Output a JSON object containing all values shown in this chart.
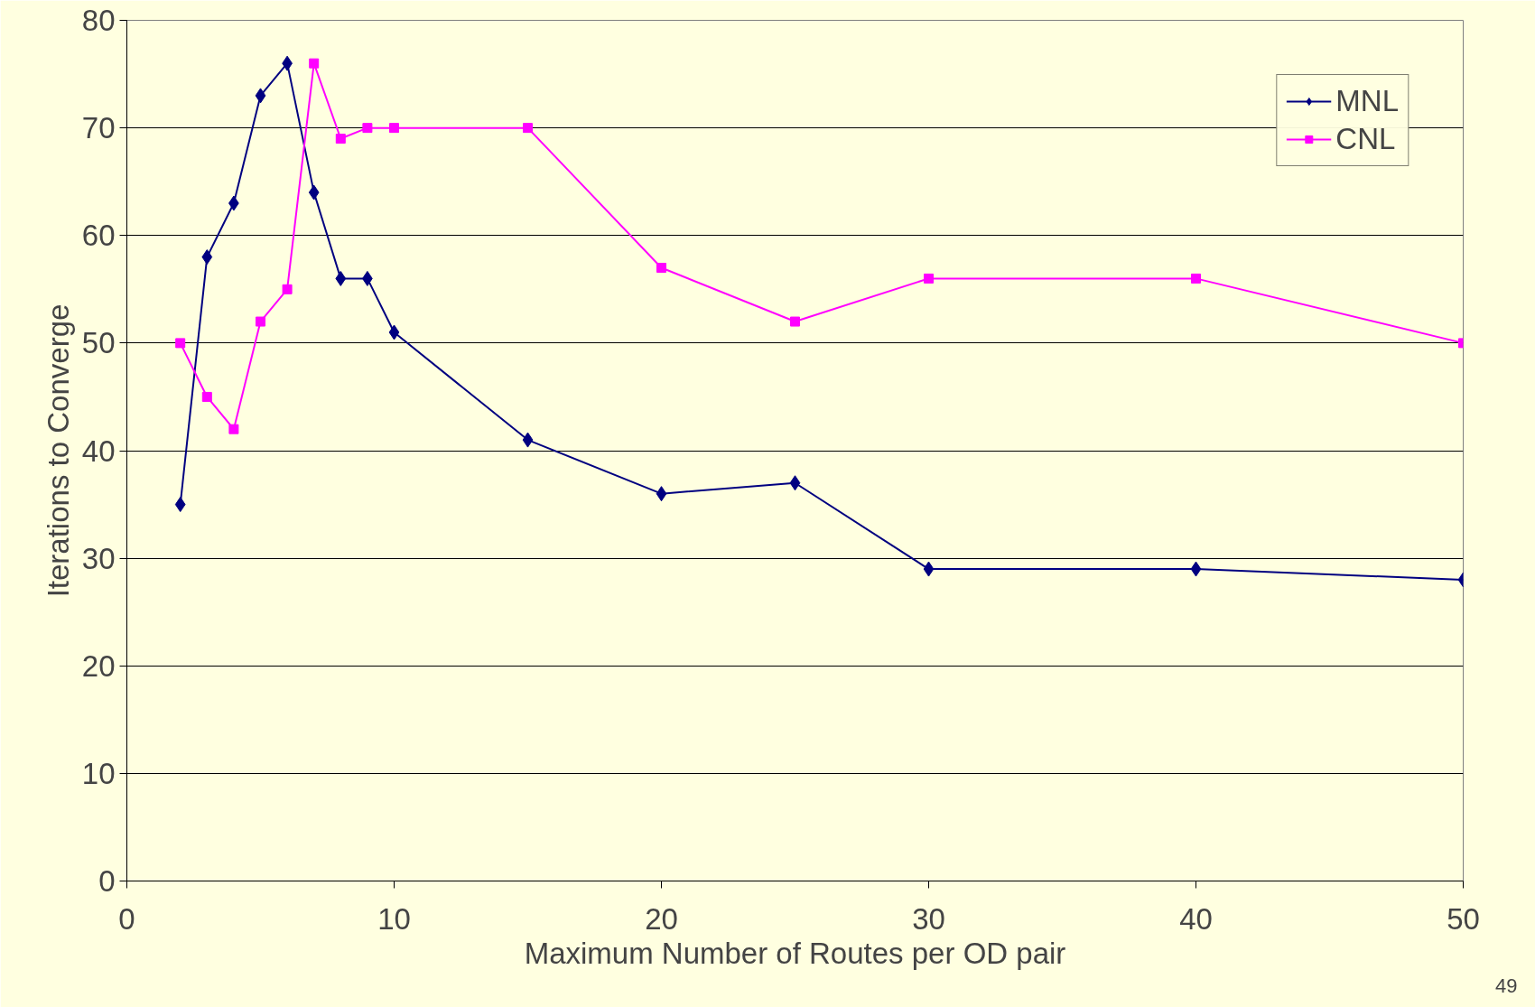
{
  "chart_data": {
    "type": "line",
    "xlabel": "Maximum Number of Routes per OD pair",
    "ylabel": "Iterations to Converge",
    "xlim": [
      0,
      50
    ],
    "xticks": [
      0,
      10,
      20,
      30,
      40,
      50
    ],
    "ylim": [
      0,
      80
    ],
    "yticks": [
      0,
      10,
      20,
      30,
      40,
      50,
      60,
      70,
      80
    ],
    "grid": "y",
    "legend": "top right",
    "line_style": "solid",
    "x": [
      2,
      3,
      4,
      5,
      6,
      7,
      8,
      9,
      10,
      15,
      20,
      25,
      30,
      40,
      50
    ],
    "series": [
      {
        "name": "MNL",
        "color": "#000080",
        "marker": "diamond",
        "values": [
          35,
          58,
          63,
          73,
          76,
          64,
          56,
          56,
          51,
          41,
          36,
          37,
          29,
          29,
          28
        ]
      },
      {
        "name": "CNL",
        "color": "#ff00ff",
        "marker": "square",
        "values": [
          50,
          45,
          42,
          52,
          55,
          76,
          69,
          70,
          70,
          70,
          57,
          52,
          56,
          56,
          50
        ]
      }
    ],
    "annotations": [
      "49"
    ]
  }
}
